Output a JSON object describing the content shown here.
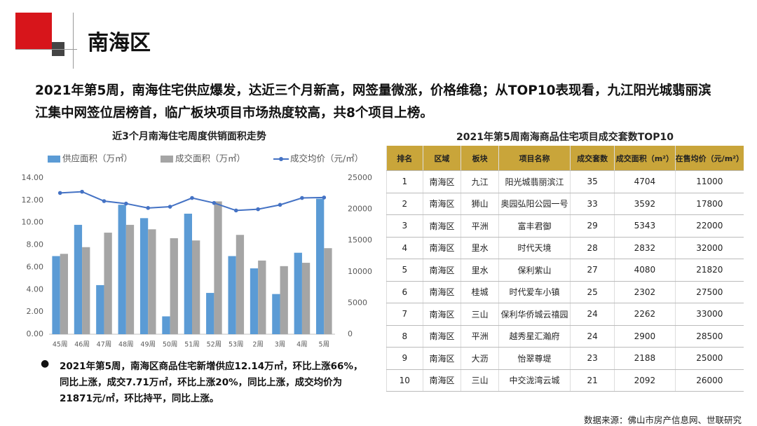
{
  "header": {
    "title": "南海区"
  },
  "summary": [
    "2021年第5周，南海住宅供应爆发，达近三个月新高，网签量微涨，价格维稳；从TOP10表现看，九江阳光城翡丽滨",
    "江集中网签位居榜首，临广板块项目市场热度较高，共8个项目上榜。"
  ],
  "chart_data": {
    "type": "bar-line",
    "title": "近3个月南海住宅周度供销面积走势",
    "categories": [
      "45周",
      "46周",
      "47周",
      "48周",
      "49周",
      "50周",
      "51周",
      "52周",
      "53周",
      "2周",
      "3周",
      "4周",
      "5周"
    ],
    "series": [
      {
        "name": "供应面积（万㎡）",
        "color": "#5b9bd5",
        "type": "bar",
        "values": [
          7.0,
          9.8,
          4.4,
          11.6,
          10.4,
          1.6,
          10.8,
          3.7,
          7.0,
          5.9,
          3.6,
          7.3,
          12.14
        ]
      },
      {
        "name": "成交面积（万㎡）",
        "color": "#a5a5a5",
        "type": "bar",
        "values": [
          7.2,
          7.8,
          9.1,
          9.8,
          9.4,
          8.6,
          8.4,
          11.9,
          8.9,
          6.6,
          6.1,
          6.4,
          7.71
        ]
      },
      {
        "name": "成交均价（元/㎡）",
        "color": "#4472c4",
        "type": "line",
        "axis": "y2",
        "values": [
          22600,
          22800,
          21300,
          20900,
          20200,
          20400,
          21800,
          21000,
          19800,
          20000,
          20700,
          21800,
          21871
        ]
      }
    ],
    "ylim": [
      0,
      14
    ],
    "yticks": [
      {
        "value": 0,
        "label": "0.00"
      },
      {
        "value": 2,
        "label": "2.00"
      },
      {
        "value": 4,
        "label": "4.00"
      },
      {
        "value": 6,
        "label": "6.00"
      },
      {
        "value": 8,
        "label": "8.00"
      },
      {
        "value": 10,
        "label": "10.00"
      },
      {
        "value": 12,
        "label": "12.00"
      },
      {
        "value": 14,
        "label": "14.00"
      }
    ],
    "y2lim": [
      0,
      25000
    ],
    "y2ticks": [
      0,
      5000,
      10000,
      15000,
      20000,
      25000
    ],
    "legend": "top"
  },
  "table": {
    "title": "2021年第5周南海商品住宅项目成交套数TOP10",
    "header": [
      "排名",
      "区域",
      "板块",
      "项目名称",
      "成交套数",
      "成交面积（m²）",
      "在售均价（元/m²）"
    ],
    "rows": [
      [
        1,
        "南海区",
        "九江",
        "阳光城翡丽滨江",
        35,
        4704,
        11000
      ],
      [
        2,
        "南海区",
        "狮山",
        "奥园弘阳公园一号",
        33,
        3592,
        17800
      ],
      [
        3,
        "南海区",
        "平洲",
        "富丰君御",
        29,
        5343,
        22000
      ],
      [
        4,
        "南海区",
        "里水",
        "时代天境",
        28,
        2832,
        32000
      ],
      [
        5,
        "南海区",
        "里水",
        "保利紫山",
        27,
        4080,
        21820
      ],
      [
        6,
        "南海区",
        "桂城",
        "时代爱车小镇",
        25,
        2302,
        27500
      ],
      [
        7,
        "南海区",
        "三山",
        "保利华侨城云禧园",
        24,
        2262,
        33000
      ],
      [
        8,
        "南海区",
        "平洲",
        "越秀星汇瀚府",
        24,
        2900,
        28500
      ],
      [
        9,
        "南海区",
        "大沥",
        "怡翠尊堤",
        23,
        2188,
        25000
      ],
      [
        10,
        "南海区",
        "三山",
        "中交泷湾云城",
        21,
        2092,
        26000
      ]
    ]
  },
  "bullet": [
    "2021年第5周，南海区商品住宅新增供应12.14万㎡，环比上涨66%，",
    "同比上涨，成交7.71万㎡，环比上涨20%，同比上涨，成交均价为",
    "21871元/㎡，环比持平，同比上涨。"
  ],
  "source": "数据来源：佛山市房产信息网、世联研究"
}
